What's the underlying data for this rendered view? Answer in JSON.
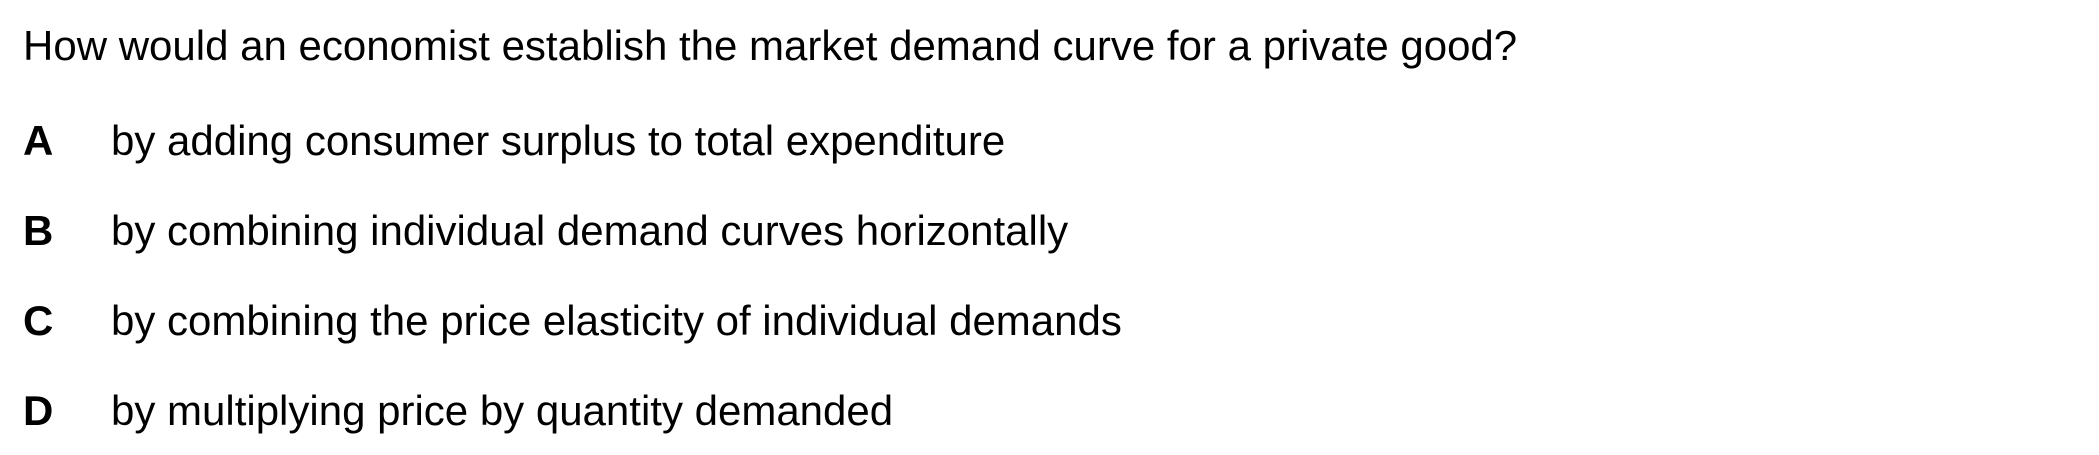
{
  "question": "How would an economist establish the market demand curve for a private good?",
  "options": [
    {
      "letter": "A",
      "text": "by adding consumer surplus to total expenditure"
    },
    {
      "letter": "B",
      "text": "by combining individual demand curves horizontally"
    },
    {
      "letter": "C",
      "text": "by combining the price elasticity of individual demands"
    },
    {
      "letter": "D",
      "text": "by multiplying price by quantity demanded"
    }
  ]
}
